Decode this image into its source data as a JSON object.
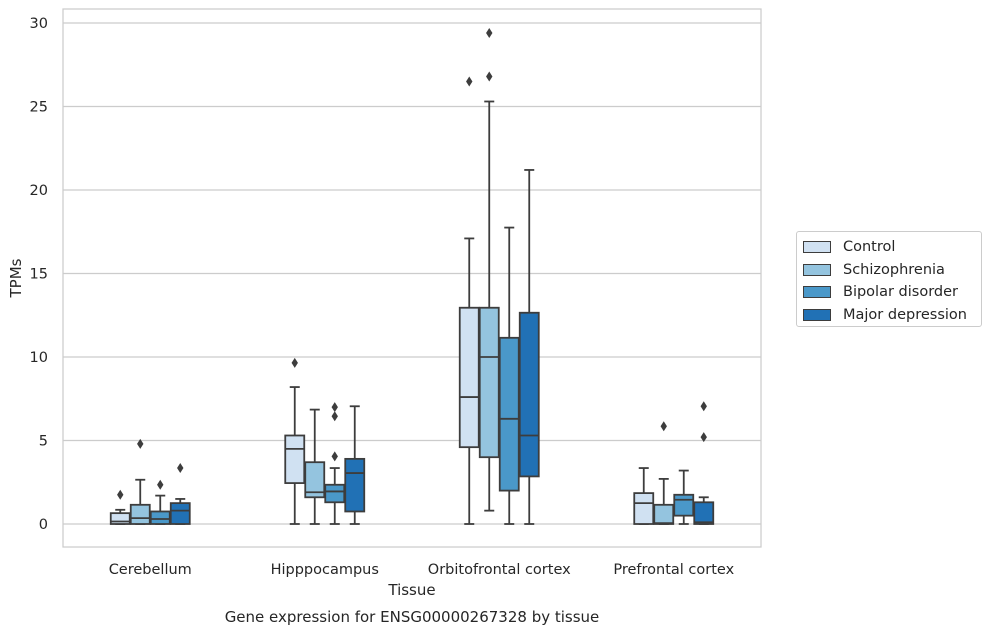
{
  "chart_data": {
    "type": "box",
    "title": "Gene expression for ENSG00000267328 by tissue",
    "xlabel": "Tissue",
    "ylabel": "TPMs",
    "ylim": [
      -1.4,
      30.8
    ],
    "yticks": [
      0,
      5,
      10,
      15,
      20,
      25,
      30
    ],
    "grid": "horizontal",
    "legend_position": "right",
    "categories": [
      "Cerebellum",
      "Hipppocampus",
      "Orbitofrontal cortex",
      "Prefrontal cortex"
    ],
    "series": [
      {
        "name": "Control",
        "color": "#d0e1f2",
        "boxes": [
          {
            "whislo": 0.0,
            "q1": 0.0,
            "med": 0.15,
            "q3": 0.65,
            "whishi": 0.85,
            "fliers": [
              1.75
            ]
          },
          {
            "whislo": 0.0,
            "q1": 2.45,
            "med": 4.5,
            "q3": 5.3,
            "whishi": 8.2,
            "fliers": [
              9.65
            ]
          },
          {
            "whislo": 0.0,
            "q1": 4.6,
            "med": 7.6,
            "q3": 12.95,
            "whishi": 17.1,
            "fliers": [
              26.5
            ]
          },
          {
            "whislo": 0.0,
            "q1": 0.0,
            "med": 1.25,
            "q3": 1.85,
            "whishi": 3.35,
            "fliers": []
          }
        ]
      },
      {
        "name": "Schizophrenia",
        "color": "#94c4df",
        "boxes": [
          {
            "whislo": 0.0,
            "q1": 0.0,
            "med": 0.35,
            "q3": 1.15,
            "whishi": 2.65,
            "fliers": [
              4.8
            ]
          },
          {
            "whislo": 0.0,
            "q1": 1.6,
            "med": 1.9,
            "q3": 3.7,
            "whishi": 6.85,
            "fliers": []
          },
          {
            "whislo": 0.8,
            "q1": 4.0,
            "med": 10.0,
            "q3": 12.95,
            "whishi": 25.3,
            "fliers": [
              26.8,
              29.4
            ]
          },
          {
            "whislo": 0.0,
            "q1": 0.0,
            "med": 0.05,
            "q3": 1.15,
            "whishi": 2.7,
            "fliers": [
              5.85
            ]
          }
        ]
      },
      {
        "name": "Bipolar disorder",
        "color": "#4a98c9",
        "boxes": [
          {
            "whislo": 0.0,
            "q1": 0.0,
            "med": 0.3,
            "q3": 0.75,
            "whishi": 1.7,
            "fliers": [
              2.35
            ]
          },
          {
            "whislo": 0.0,
            "q1": 1.3,
            "med": 1.95,
            "q3": 2.35,
            "whishi": 3.35,
            "fliers": [
              4.05,
              6.45,
              7.0
            ]
          },
          {
            "whislo": 0.0,
            "q1": 2.0,
            "med": 6.3,
            "q3": 11.15,
            "whishi": 17.75,
            "fliers": []
          },
          {
            "whislo": 0.0,
            "q1": 0.5,
            "med": 1.45,
            "q3": 1.75,
            "whishi": 3.2,
            "fliers": []
          }
        ]
      },
      {
        "name": "Major depression",
        "color": "#2171b5",
        "boxes": [
          {
            "whislo": 0.0,
            "q1": 0.0,
            "med": 0.8,
            "q3": 1.25,
            "whishi": 1.5,
            "fliers": [
              3.35
            ]
          },
          {
            "whislo": 0.0,
            "q1": 0.75,
            "med": 3.05,
            "q3": 3.9,
            "whishi": 7.05,
            "fliers": []
          },
          {
            "whislo": 0.0,
            "q1": 2.85,
            "med": 5.3,
            "q3": 12.65,
            "whishi": 21.2,
            "fliers": []
          },
          {
            "whislo": 0.0,
            "q1": 0.0,
            "med": 0.1,
            "q3": 1.3,
            "whishi": 1.6,
            "fliers": [
              5.2,
              7.05
            ]
          }
        ]
      }
    ]
  }
}
